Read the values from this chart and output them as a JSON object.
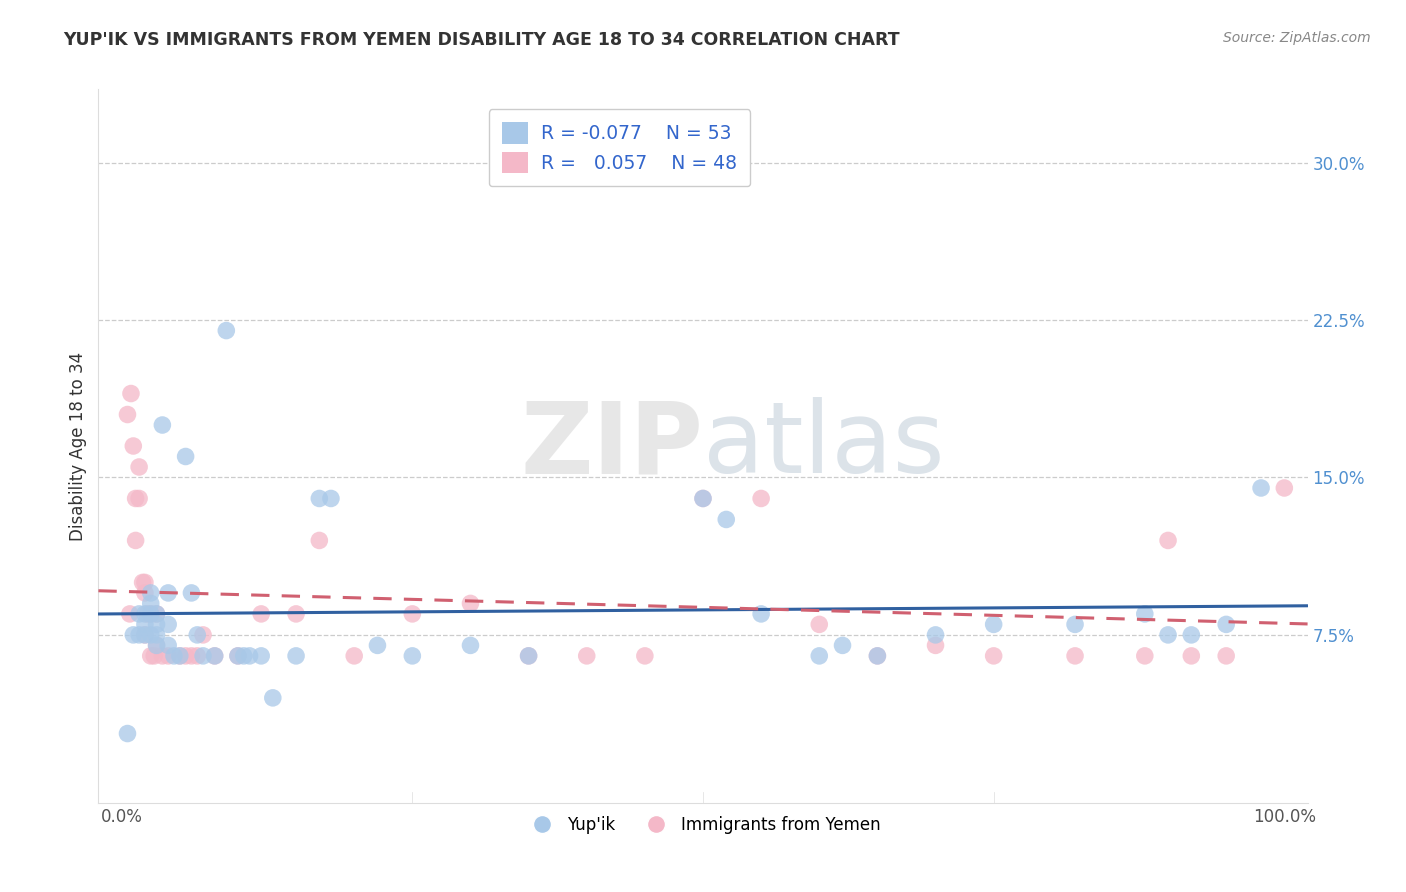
{
  "title": "YUP'IK VS IMMIGRANTS FROM YEMEN DISABILITY AGE 18 TO 34 CORRELATION CHART",
  "source": "Source: ZipAtlas.com",
  "ylabel": "Disability Age 18 to 34",
  "xlim": [
    -0.02,
    1.02
  ],
  "ylim": [
    -0.005,
    0.335
  ],
  "ytick_labels": [
    "7.5%",
    "15.0%",
    "22.5%",
    "30.0%"
  ],
  "ytick_values": [
    0.075,
    0.15,
    0.225,
    0.3
  ],
  "color_blue": "#A8C8E8",
  "color_pink": "#F4B8C8",
  "line_color_blue": "#3060A0",
  "line_color_pink": "#D06070",
  "background_color": "#FFFFFF",
  "yupiik_x": [
    0.005,
    0.01,
    0.015,
    0.015,
    0.02,
    0.02,
    0.02,
    0.025,
    0.025,
    0.025,
    0.025,
    0.03,
    0.03,
    0.03,
    0.03,
    0.035,
    0.04,
    0.04,
    0.04,
    0.045,
    0.05,
    0.055,
    0.06,
    0.065,
    0.07,
    0.08,
    0.09,
    0.1,
    0.105,
    0.11,
    0.12,
    0.13,
    0.15,
    0.17,
    0.18,
    0.22,
    0.25,
    0.3,
    0.35,
    0.5,
    0.52,
    0.55,
    0.6,
    0.62,
    0.65,
    0.7,
    0.75,
    0.82,
    0.88,
    0.9,
    0.92,
    0.95,
    0.98
  ],
  "yupiik_y": [
    0.028,
    0.075,
    0.085,
    0.075,
    0.085,
    0.08,
    0.075,
    0.095,
    0.09,
    0.085,
    0.075,
    0.085,
    0.08,
    0.075,
    0.07,
    0.175,
    0.095,
    0.08,
    0.07,
    0.065,
    0.065,
    0.16,
    0.095,
    0.075,
    0.065,
    0.065,
    0.22,
    0.065,
    0.065,
    0.065,
    0.065,
    0.045,
    0.065,
    0.14,
    0.14,
    0.07,
    0.065,
    0.07,
    0.065,
    0.14,
    0.13,
    0.085,
    0.065,
    0.07,
    0.065,
    0.075,
    0.08,
    0.08,
    0.085,
    0.075,
    0.075,
    0.08,
    0.145
  ],
  "yemen_x": [
    0.005,
    0.007,
    0.008,
    0.01,
    0.012,
    0.012,
    0.015,
    0.015,
    0.018,
    0.02,
    0.02,
    0.02,
    0.022,
    0.025,
    0.025,
    0.028,
    0.03,
    0.03,
    0.035,
    0.04,
    0.05,
    0.055,
    0.06,
    0.065,
    0.07,
    0.08,
    0.1,
    0.12,
    0.15,
    0.17,
    0.2,
    0.25,
    0.3,
    0.35,
    0.4,
    0.45,
    0.5,
    0.55,
    0.6,
    0.65,
    0.7,
    0.75,
    0.82,
    0.88,
    0.9,
    0.92,
    0.95,
    1.0
  ],
  "yemen_y": [
    0.18,
    0.085,
    0.19,
    0.165,
    0.14,
    0.12,
    0.155,
    0.14,
    0.1,
    0.1,
    0.095,
    0.075,
    0.085,
    0.085,
    0.065,
    0.065,
    0.085,
    0.07,
    0.065,
    0.065,
    0.065,
    0.065,
    0.065,
    0.065,
    0.075,
    0.065,
    0.065,
    0.085,
    0.085,
    0.12,
    0.065,
    0.085,
    0.09,
    0.065,
    0.065,
    0.065,
    0.14,
    0.14,
    0.08,
    0.065,
    0.07,
    0.065,
    0.065,
    0.065,
    0.12,
    0.065,
    0.065,
    0.145
  ]
}
